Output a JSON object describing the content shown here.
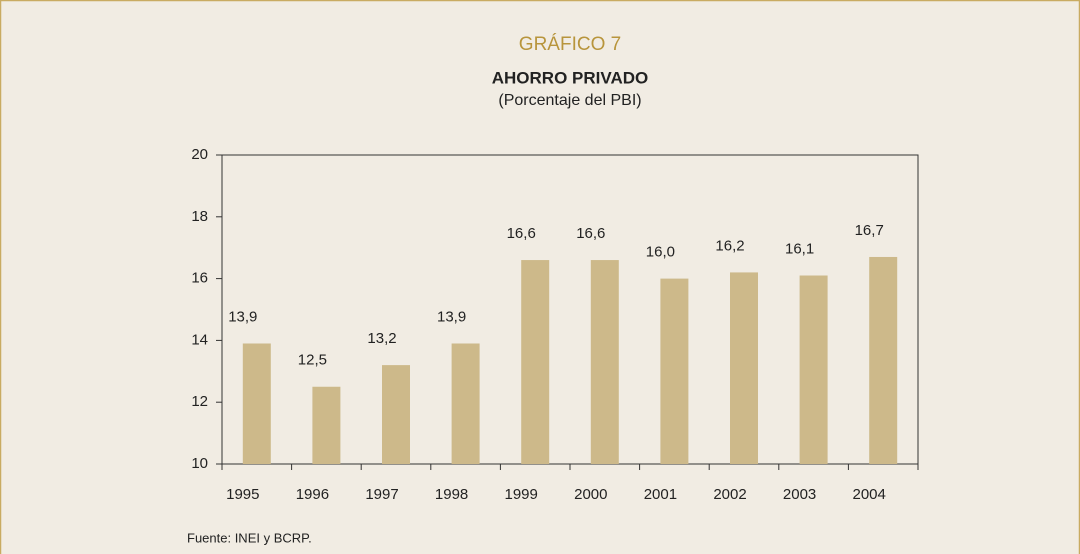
{
  "chart_data": {
    "type": "bar",
    "chart_label": "GRÁFICO 7",
    "title": "AHORRO PRIVADO",
    "subtitle": "(Porcentaje del PBI)",
    "source": "Fuente: INEI y BCRP.",
    "categories": [
      "1995",
      "1996",
      "1997",
      "1998",
      "1999",
      "2000",
      "2001",
      "2002",
      "2003",
      "2004"
    ],
    "values": [
      13.9,
      12.5,
      13.2,
      13.9,
      16.6,
      16.6,
      16.0,
      16.2,
      16.1,
      16.7
    ],
    "value_labels": [
      "13,9",
      "12,5",
      "13,2",
      "13,9",
      "16,6",
      "16,6",
      "16,0",
      "16,2",
      "16,1",
      "16,7"
    ],
    "color": "#cdb98a",
    "ylim": [
      10,
      20
    ],
    "yticks": [
      10,
      12,
      14,
      16,
      18,
      20
    ],
    "grid": false
  }
}
